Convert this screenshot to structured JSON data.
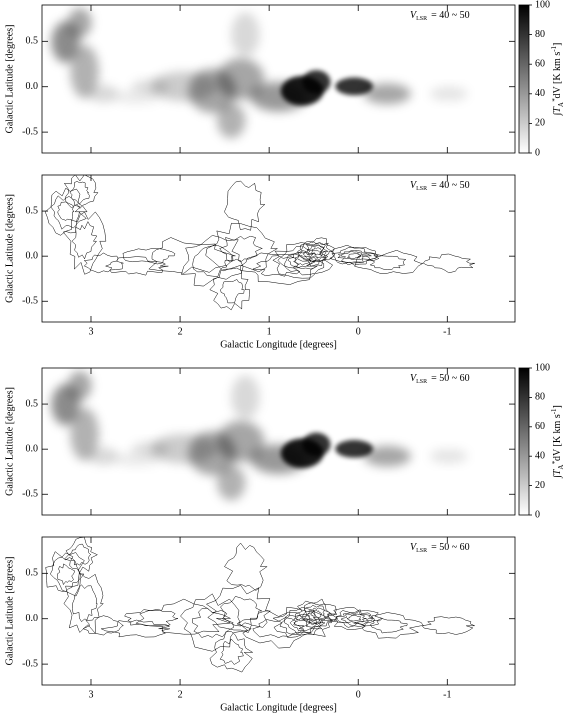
{
  "chart_data": [
    {
      "type": "heatmap",
      "ylabel": "Galactic Latitude [degrees]",
      "xlim": [
        3.55,
        -1.76
      ],
      "ylim": [
        -0.73,
        0.9
      ],
      "xticks": [
        3,
        2,
        1,
        0,
        -1
      ],
      "yticks": [
        0.5,
        {
          "value": 0,
          "label": "0.0"
        },
        -0.5
      ],
      "annotation": {
        "symbol": "V",
        "subscript": "LSR",
        "text": "= 40 ~ 50"
      },
      "colorbar": {
        "clim": [
          0,
          100
        ],
        "ticks": [
          0,
          20,
          40,
          60,
          80,
          100
        ],
        "label": [
          "∫T",
          "A",
          "*",
          "dV [K km s",
          "-1",
          "]"
        ]
      }
    },
    {
      "type": "contour",
      "ylabel": "Galactic Latitude [degrees]",
      "xlabel": "Galactic Longitude [degrees]",
      "xlim": [
        3.55,
        -1.76
      ],
      "ylim": [
        -0.73,
        0.9
      ],
      "xticks": [
        3,
        2,
        1,
        0,
        -1
      ],
      "yticks": [
        0.5,
        {
          "value": 0,
          "label": "0.0"
        },
        -0.5
      ],
      "annotation": {
        "symbol": "V",
        "subscript": "LSR",
        "text": "= 40 ~ 50"
      }
    },
    {
      "type": "heatmap",
      "ylabel": "Galactic Latitude [degrees]",
      "xlim": [
        3.55,
        -1.76
      ],
      "ylim": [
        -0.73,
        0.9
      ],
      "xticks": [
        3,
        2,
        1,
        0,
        -1
      ],
      "yticks": [
        0.5,
        {
          "value": 0,
          "label": "0.0"
        },
        -0.5
      ],
      "annotation": {
        "symbol": "V",
        "subscript": "LSR",
        "text": "= 50 ~ 60"
      },
      "colorbar": {
        "clim": [
          0,
          100
        ],
        "ticks": [
          0,
          20,
          40,
          60,
          80,
          100
        ],
        "label": [
          "∫T",
          "A",
          "*",
          "dV [K km s",
          "-1",
          "]"
        ]
      }
    },
    {
      "type": "contour",
      "ylabel": "Galactic Latitude [degrees]",
      "xlabel": "Galactic Longitude [degrees]",
      "xlim": [
        3.55,
        -1.76
      ],
      "ylim": [
        -0.73,
        0.9
      ],
      "xticks": [
        3,
        2,
        1,
        0,
        -1
      ],
      "yticks": [
        0.5,
        {
          "value": 0,
          "label": "0.0"
        },
        -0.5
      ],
      "annotation": {
        "symbol": "V",
        "subscript": "LSR",
        "text": "= 50 ~ 60"
      }
    }
  ]
}
